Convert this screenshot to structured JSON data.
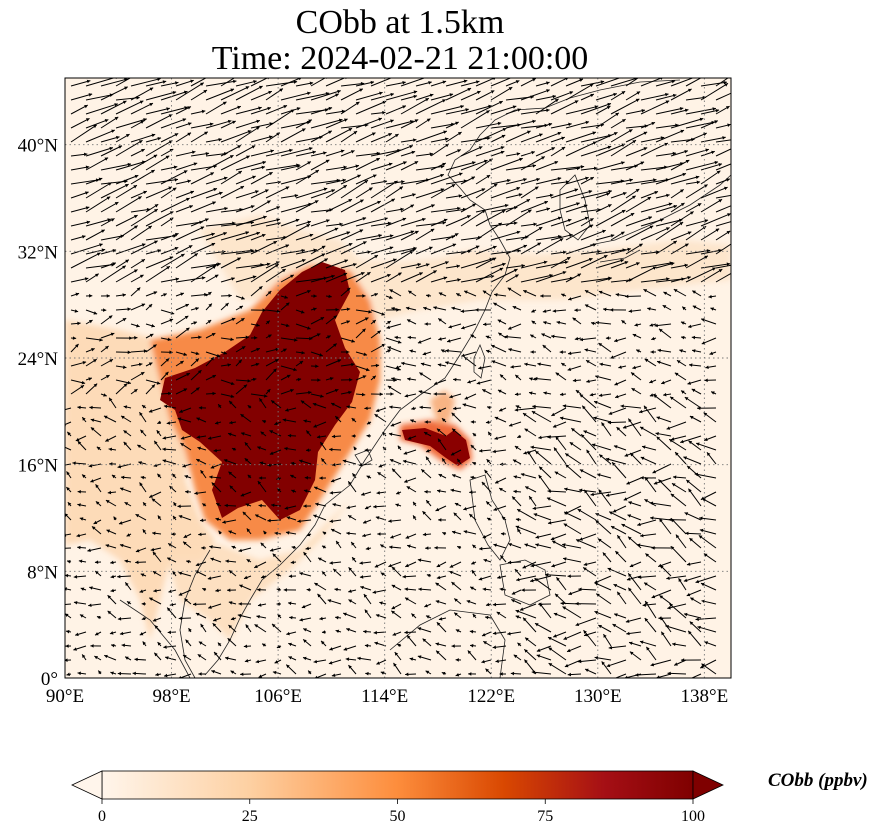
{
  "title": {
    "line1": "CObb at 1.5km",
    "line2": "Time: 2024-02-21 21:00:00"
  },
  "map": {
    "lon_range": [
      90,
      140
    ],
    "lat_range": [
      0,
      45
    ],
    "lon_ticks": [
      {
        "value": 90,
        "label": "90°E"
      },
      {
        "value": 98,
        "label": "98°E"
      },
      {
        "value": 106,
        "label": "106°E"
      },
      {
        "value": 114,
        "label": "114°E"
      },
      {
        "value": 122,
        "label": "122°E"
      },
      {
        "value": 130,
        "label": "130°E"
      },
      {
        "value": 138,
        "label": "138°E"
      }
    ],
    "lat_ticks": [
      {
        "value": 0,
        "label": "0°"
      },
      {
        "value": 8,
        "label": "8°N"
      },
      {
        "value": 16,
        "label": "16°N"
      },
      {
        "value": 24,
        "label": "24°N"
      },
      {
        "value": 32,
        "label": "32°N"
      },
      {
        "value": 40,
        "label": "40°N"
      }
    ],
    "gridlines": "dotted",
    "variable": "CObb",
    "vector_field": "wind arrows"
  },
  "colorbar": {
    "label": "CObb (ppbv)",
    "min": 0,
    "max": 100,
    "ticks": [
      "0",
      "25",
      "50",
      "75",
      "100"
    ],
    "extend": "both",
    "colors": [
      "#fff5eb",
      "#fdd0a2",
      "#fd8d3c",
      "#d94801",
      "#a50f15",
      "#7f0000"
    ]
  }
}
